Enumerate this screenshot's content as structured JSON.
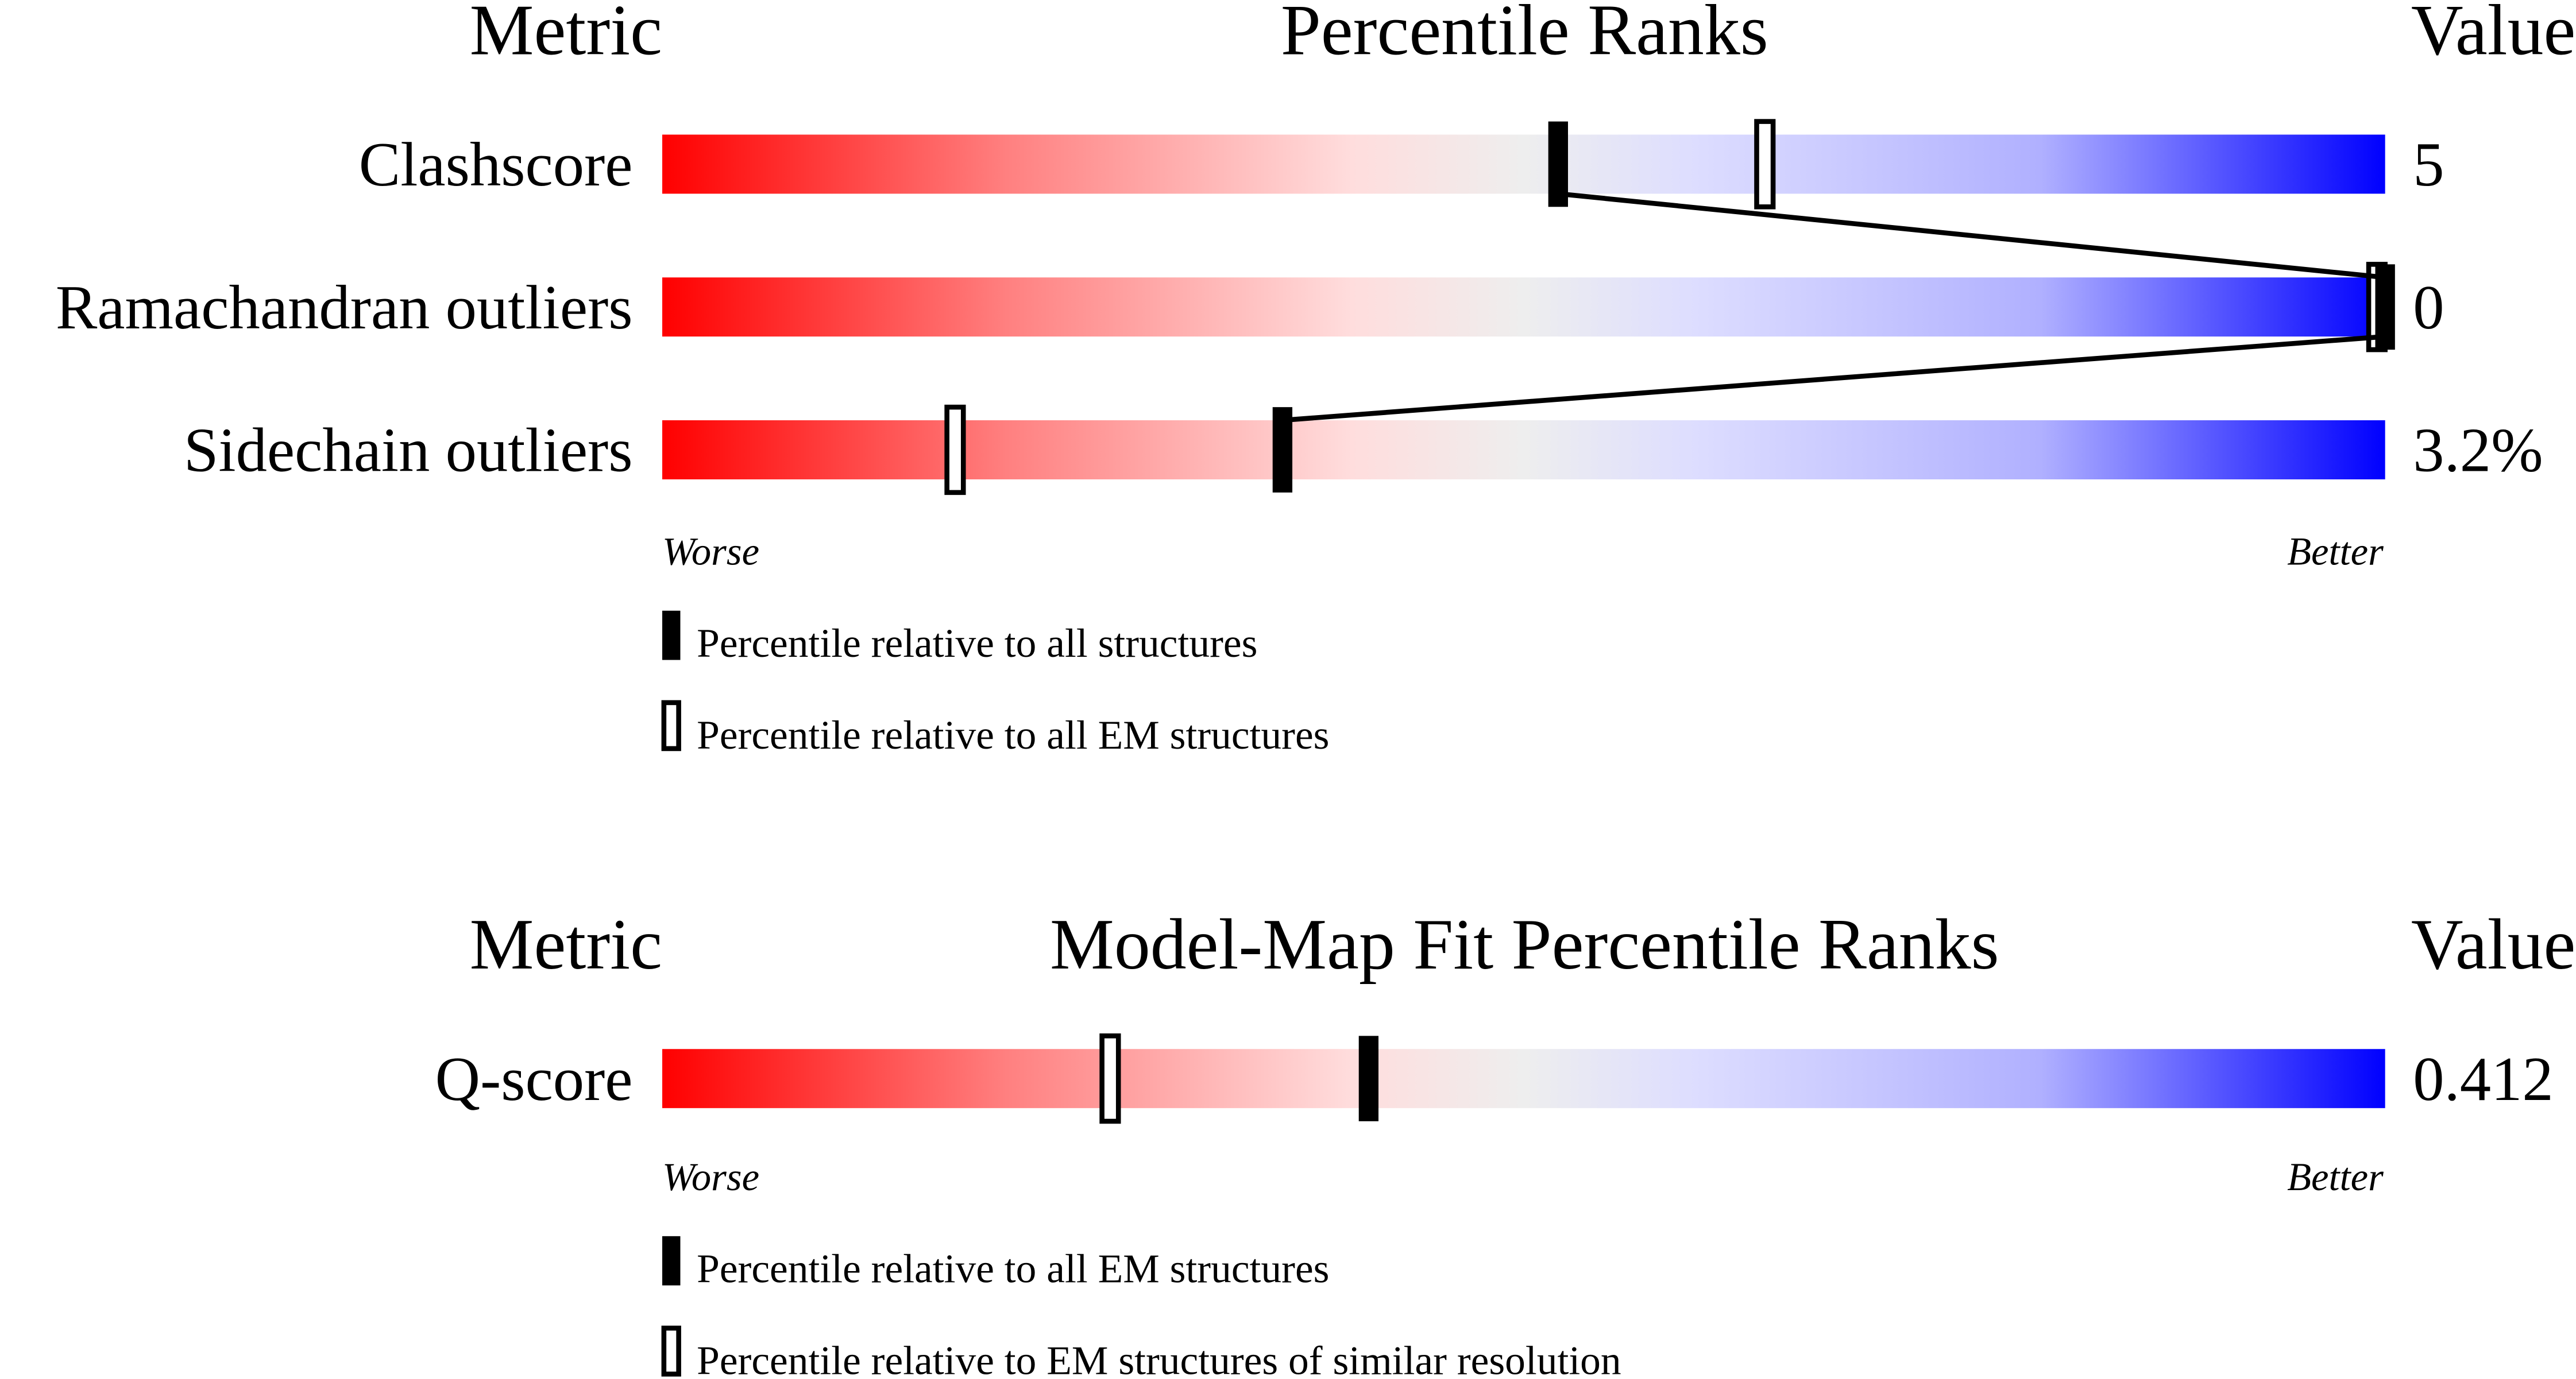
{
  "chart_data": [
    {
      "type": "bar",
      "headers": {
        "metric": "Metric",
        "title": "Percentile Ranks",
        "value": "Value"
      },
      "metrics": [
        {
          "name": "Clashscore",
          "value": "5",
          "percentile_all": 52,
          "percentile_em": 64
        },
        {
          "name": "Ramachandran outliers",
          "value": "0",
          "percentile_all": 100,
          "percentile_em": 100
        },
        {
          "name": "Sidechain outliers",
          "value": "3.2%",
          "percentile_all": 36,
          "percentile_em": 17
        }
      ],
      "axis": {
        "worse": "Worse",
        "better": "Better",
        "range": [
          0,
          100
        ]
      },
      "legend": {
        "filled": "Percentile relative to all structures",
        "open": "Percentile relative to all EM structures"
      }
    },
    {
      "type": "bar",
      "headers": {
        "metric": "Metric",
        "title": "Model-Map Fit Percentile Ranks",
        "value": "Value"
      },
      "metrics": [
        {
          "name": "Q-score",
          "value": "0.412",
          "percentile_all": 41,
          "percentile_em": 26
        }
      ],
      "axis": {
        "worse": "Worse",
        "better": "Better",
        "range": [
          0,
          100
        ]
      },
      "legend": {
        "filled": "Percentile relative to all EM structures",
        "open": "Percentile relative to EM structures of similar resolution"
      }
    }
  ],
  "colors": {
    "worse": "#ff0000",
    "middle": "#eeeeee",
    "better": "#0000ff",
    "marker": "#000000"
  }
}
